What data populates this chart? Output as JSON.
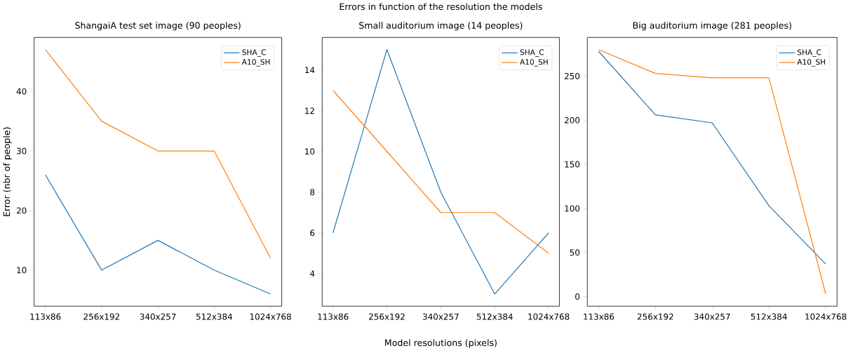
{
  "chart_data": [
    {
      "type": "line",
      "title": "ShangaiA test set image (90 peoples)",
      "ylabel": "Error (nbr of people)",
      "categories": [
        "113x86",
        "256x192",
        "340x257",
        "512x384",
        "1024x768"
      ],
      "series": [
        {
          "name": "SHA_C",
          "color": "#1f77b4",
          "values": [
            26,
            10,
            15,
            10,
            6
          ]
        },
        {
          "name": "A10_SH",
          "color": "#ff7f0e",
          "values": [
            47,
            35,
            30,
            30,
            12
          ]
        }
      ],
      "ylim": [
        3.95,
        49.05
      ],
      "yticks": [
        10,
        20,
        30,
        40
      ],
      "legend": "top right"
    },
    {
      "type": "line",
      "title": "Small auditorium image (14 peoples)",
      "xlabel": "Model resolutions (pixels)",
      "annotations": [
        "Errors in function of the resolution the models"
      ],
      "categories": [
        "113x86",
        "256x192",
        "340x257",
        "512x384",
        "1024x768"
      ],
      "series": [
        {
          "name": "SHA_C",
          "color": "#1f77b4",
          "values": [
            6,
            15,
            8,
            3,
            6
          ]
        },
        {
          "name": "A10_SH",
          "color": "#ff7f0e",
          "values": [
            13,
            10,
            7,
            7,
            5
          ]
        }
      ],
      "ylim": [
        2.4,
        15.6
      ],
      "yticks": [
        4,
        6,
        8,
        10,
        12,
        14
      ],
      "legend": "top right"
    },
    {
      "type": "line",
      "title": "Big auditorium image (281 peoples)",
      "categories": [
        "113x86",
        "256x192",
        "340x257",
        "512x384",
        "1024x768"
      ],
      "series": [
        {
          "name": "SHA_C",
          "color": "#1f77b4",
          "values": [
            278,
            206,
            197,
            103,
            37
          ]
        },
        {
          "name": "A10_SH",
          "color": "#ff7f0e",
          "values": [
            280,
            253,
            248,
            248,
            3
          ]
        }
      ],
      "ylim": [
        -10.85,
        293.85
      ],
      "yticks": [
        0,
        50,
        100,
        150,
        200,
        250
      ],
      "legend": "top right"
    }
  ]
}
